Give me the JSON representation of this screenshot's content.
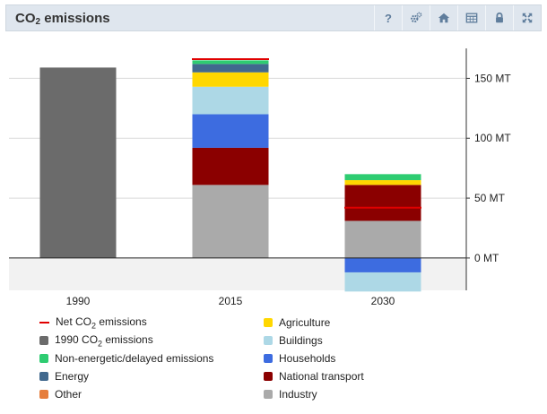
{
  "header": {
    "title_main": "CO",
    "title_sub": "2",
    "title_rest": " emissions",
    "tools": [
      {
        "name": "help-button",
        "icon": "question-icon",
        "glyph": "?"
      },
      {
        "name": "settings-button",
        "icon": "gears-icon"
      },
      {
        "name": "home-button",
        "icon": "home-icon"
      },
      {
        "name": "table-button",
        "icon": "table-icon"
      },
      {
        "name": "lock-button",
        "icon": "lock-icon"
      },
      {
        "name": "fullscreen-button",
        "icon": "expand-icon"
      }
    ]
  },
  "chart_data": {
    "type": "bar",
    "stacked": true,
    "categories": [
      "1990",
      "2015",
      "2030"
    ],
    "y_axis": {
      "position": "right",
      "ylim": [
        -27,
        175
      ],
      "ticks": [
        0,
        50,
        100,
        150
      ],
      "tick_labels": [
        "0 MT",
        "50 MT",
        "100 MT",
        "150 MT"
      ]
    },
    "grid": true,
    "series": [
      {
        "name": "1990 CO₂ emissions",
        "color": "#6b6b6b",
        "values": [
          159,
          0,
          0
        ]
      },
      {
        "name": "Industry",
        "color": "#aaaaaa",
        "values": [
          0,
          61,
          31
        ]
      },
      {
        "name": "National transport",
        "color": "#8b0000",
        "values": [
          0,
          31,
          30
        ]
      },
      {
        "name": "Households",
        "color": "#3d6ce0",
        "values": [
          0,
          28,
          -12
        ]
      },
      {
        "name": "Buildings",
        "color": "#add8e6",
        "values": [
          0,
          23,
          -16
        ]
      },
      {
        "name": "Agriculture",
        "color": "#ffd700",
        "values": [
          0,
          12,
          4
        ]
      },
      {
        "name": "Energy",
        "color": "#41698e",
        "values": [
          0,
          7,
          0
        ]
      },
      {
        "name": "Non-energetic/delayed emissions",
        "color": "#2ecc71",
        "values": [
          0,
          3,
          5
        ]
      },
      {
        "name": "Other",
        "color": "#e67e3c",
        "values": [
          0,
          0,
          0
        ]
      }
    ],
    "net_emissions": {
      "name": "Net CO₂ emissions",
      "color": "#e00000",
      "values": [
        null,
        166,
        42
      ]
    }
  },
  "legend": {
    "left": [
      {
        "pre": "Net CO",
        "sub": "2",
        "post": " emissions",
        "color": "#e00000",
        "line": true
      },
      {
        "pre": "1990 CO",
        "sub": "2",
        "post": " emissions",
        "color": "#6b6b6b"
      },
      {
        "pre": "Non-energetic/delayed emissions",
        "color": "#2ecc71"
      },
      {
        "pre": "Energy",
        "color": "#41698e"
      },
      {
        "pre": "Other",
        "color": "#e67e3c"
      }
    ],
    "right": [
      {
        "pre": "Agriculture",
        "color": "#ffd700"
      },
      {
        "pre": "Buildings",
        "color": "#add8e6"
      },
      {
        "pre": "Households",
        "color": "#3d6ce0"
      },
      {
        "pre": "National transport",
        "color": "#8b0000"
      },
      {
        "pre": "Industry",
        "color": "#aaaaaa"
      }
    ]
  }
}
